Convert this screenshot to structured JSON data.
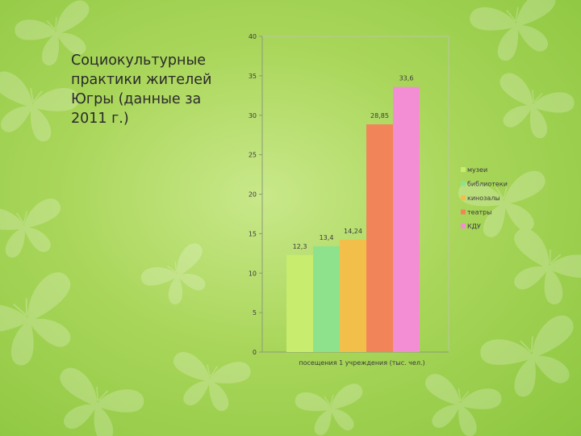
{
  "slide": {
    "title": "Социокультурные\nпрактики жителей\nЮгры (данные за\n2011 г.)"
  },
  "chart_data": {
    "type": "bar",
    "xlabel": "посещения 1 учреждения (тыс. чел.)",
    "ylim": [
      0,
      40
    ],
    "yticks": [
      0,
      5,
      10,
      15,
      20,
      25,
      30,
      35,
      40
    ],
    "legend_position": "right",
    "grid": false,
    "series": [
      {
        "name": "музеи",
        "value": 12.3,
        "label": "12,3",
        "color": "#c8ec6e"
      },
      {
        "name": "библиотеки",
        "value": 13.4,
        "label": "13,4",
        "color": "#8ee28c"
      },
      {
        "name": "кинозалы",
        "value": 14.24,
        "label": "14,24",
        "color": "#f2c04a"
      },
      {
        "name": "театры",
        "value": 28.85,
        "label": "28,85",
        "color": "#f2845a"
      },
      {
        "name": "КДУ",
        "value": 33.6,
        "label": "33,6",
        "color": "#f48ed4"
      }
    ]
  }
}
